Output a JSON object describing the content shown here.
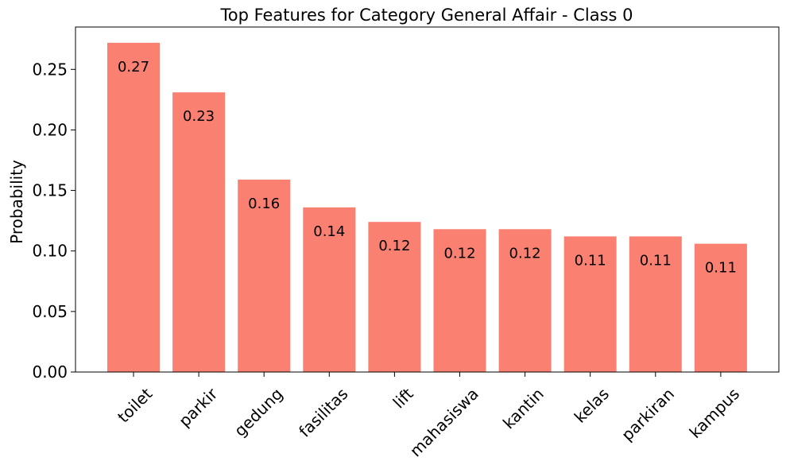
{
  "chart_data": {
    "type": "bar",
    "title": "Top Features for Category General Affair - Class 0",
    "xlabel": "",
    "ylabel": "Probability",
    "categories": [
      "toilet",
      "parkir",
      "gedung",
      "fasilitas",
      "lift",
      "mahasiswa",
      "kantin",
      "kelas",
      "parkiran",
      "kampus"
    ],
    "values": [
      0.272,
      0.231,
      0.159,
      0.136,
      0.124,
      0.118,
      0.118,
      0.112,
      0.112,
      0.106
    ],
    "data_labels": [
      "0.27",
      "0.23",
      "0.16",
      "0.14",
      "0.12",
      "0.12",
      "0.12",
      "0.11",
      "0.11",
      "0.11"
    ],
    "ylim": [
      0,
      0.285
    ],
    "yticks": [
      0.0,
      0.05,
      0.1,
      0.15,
      0.2,
      0.25
    ],
    "ytick_labels": [
      "0.00",
      "0.05",
      "0.10",
      "0.15",
      "0.20",
      "0.25"
    ],
    "bar_color": "#fa8072",
    "grid": false,
    "xtick_rotation": "45deg"
  }
}
